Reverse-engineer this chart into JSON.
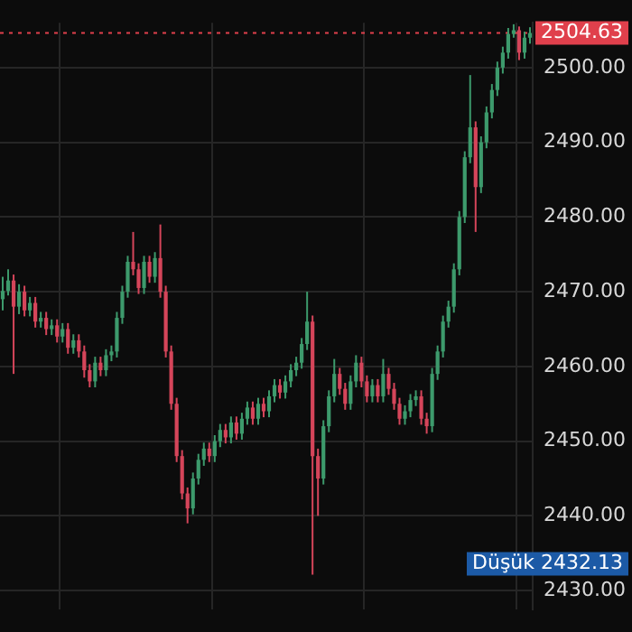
{
  "chart_data": {
    "type": "candlestick",
    "categories": [
      null,
      null,
      null,
      null,
      null,
      null,
      null,
      null,
      null,
      null,
      null,
      null,
      null,
      null,
      null,
      null,
      null,
      null,
      null,
      null,
      null,
      null,
      null,
      null,
      null,
      null,
      null,
      null,
      null,
      null,
      null,
      null,
      null,
      null,
      null,
      null,
      null,
      null,
      null,
      null,
      null,
      null,
      null,
      null,
      null,
      null,
      null,
      null,
      null,
      null,
      null,
      null,
      null,
      null,
      null,
      null,
      null,
      null,
      null,
      null,
      null,
      null,
      null,
      null,
      null,
      null,
      null,
      null,
      null,
      null,
      null,
      null,
      null,
      null,
      null,
      null,
      null,
      null,
      null,
      null,
      null,
      null,
      null,
      null,
      null,
      null,
      null,
      null,
      null,
      null,
      null,
      null,
      null,
      null,
      null,
      null,
      null,
      null
    ],
    "ohlc": [
      [
        2469,
        2472,
        2467.5,
        2470.1
      ],
      [
        2470.1,
        2473,
        2469.5,
        2471.5
      ],
      [
        2471.5,
        2472.3,
        2459,
        2468
      ],
      [
        2468,
        2471,
        2467,
        2470
      ],
      [
        2470,
        2470.8,
        2466.7,
        2467.5
      ],
      [
        2467.5,
        2469.3,
        2466.7,
        2468.5
      ],
      [
        2468.5,
        2469.3,
        2465.2,
        2466
      ],
      [
        2466,
        2467.3,
        2465.2,
        2466.5
      ],
      [
        2466.5,
        2467.3,
        2464.2,
        2465
      ],
      [
        2465,
        2466.3,
        2464.2,
        2465.5
      ],
      [
        2465.5,
        2466.3,
        2463.2,
        2464
      ],
      [
        2464,
        2465.8,
        2463.2,
        2465
      ],
      [
        2465,
        2465.8,
        2461.7,
        2462.5
      ],
      [
        2462.5,
        2464.3,
        2461.7,
        2463.5
      ],
      [
        2463.5,
        2464.3,
        2461.2,
        2462
      ],
      [
        2462,
        2462.8,
        2458.5,
        2459.5
      ],
      [
        2459.5,
        2460.3,
        2457.2,
        2458
      ],
      [
        2458,
        2461.3,
        2457.2,
        2460.5
      ],
      [
        2460.5,
        2461.3,
        2458.7,
        2459.5
      ],
      [
        2459.5,
        2462.3,
        2458.7,
        2461.5
      ],
      [
        2461.5,
        2462.8,
        2460.7,
        2462
      ],
      [
        2462,
        2467.3,
        2461.2,
        2466.5
      ],
      [
        2466.5,
        2470.8,
        2465.7,
        2470
      ],
      [
        2470,
        2474.8,
        2469.2,
        2474
      ],
      [
        2474,
        2478,
        2472.2,
        2473
      ],
      [
        2473,
        2473.8,
        2469.7,
        2470.5
      ],
      [
        2470.5,
        2474.8,
        2469.7,
        2474
      ],
      [
        2474,
        2474.8,
        2471.2,
        2472
      ],
      [
        2472,
        2475.3,
        2471.2,
        2474.5
      ],
      [
        2474.5,
        2479,
        2469.2,
        2470
      ],
      [
        2470,
        2470.8,
        2461.2,
        2462
      ],
      [
        2462,
        2462.8,
        2454.2,
        2455
      ],
      [
        2455,
        2455.8,
        2447.2,
        2448
      ],
      [
        2448,
        2448.8,
        2442.2,
        2443
      ],
      [
        2443,
        2443.8,
        2439,
        2441
      ],
      [
        2441,
        2445.8,
        2440.2,
        2445
      ],
      [
        2445,
        2448.3,
        2444.2,
        2447.5
      ],
      [
        2447.5,
        2449.8,
        2446.7,
        2449
      ],
      [
        2449,
        2449.8,
        2447.2,
        2448
      ],
      [
        2448,
        2450.8,
        2447.2,
        2450
      ],
      [
        2450,
        2452.3,
        2449.2,
        2451.5
      ],
      [
        2451.5,
        2452.3,
        2449.7,
        2450.5
      ],
      [
        2450.5,
        2453.3,
        2449.7,
        2452.5
      ],
      [
        2452.5,
        2453.3,
        2450.2,
        2451
      ],
      [
        2451,
        2453.8,
        2450.2,
        2453
      ],
      [
        2453,
        2455.3,
        2452.2,
        2454.5
      ],
      [
        2454.5,
        2455.3,
        2452.2,
        2453
      ],
      [
        2453,
        2455.8,
        2452.2,
        2455
      ],
      [
        2455,
        2455.8,
        2453.2,
        2454
      ],
      [
        2454,
        2456.8,
        2453.2,
        2456
      ],
      [
        2456,
        2458.3,
        2455.2,
        2457.5
      ],
      [
        2457.5,
        2458.3,
        2455.7,
        2456.5
      ],
      [
        2456.5,
        2458.8,
        2455.7,
        2458
      ],
      [
        2458,
        2460.3,
        2457.2,
        2459.5
      ],
      [
        2459.5,
        2461.3,
        2458.7,
        2460.5
      ],
      [
        2460.5,
        2463.8,
        2459.7,
        2463
      ],
      [
        2463,
        2470,
        2462.2,
        2466
      ],
      [
        2466,
        2466.8,
        2432.13,
        2448
      ],
      [
        2448,
        2449,
        2440,
        2445
      ],
      [
        2445,
        2452.8,
        2444.2,
        2452
      ],
      [
        2452,
        2456.8,
        2451.2,
        2456
      ],
      [
        2456,
        2461,
        2455.2,
        2459
      ],
      [
        2459,
        2459.8,
        2456.2,
        2457
      ],
      [
        2457,
        2457.8,
        2454.2,
        2455
      ],
      [
        2455,
        2458.8,
        2454.2,
        2458
      ],
      [
        2458,
        2461.5,
        2457.2,
        2460.5
      ],
      [
        2460.5,
        2461.3,
        2457.2,
        2458
      ],
      [
        2458,
        2458.8,
        2455.2,
        2456
      ],
      [
        2456,
        2458.3,
        2455.2,
        2457.5
      ],
      [
        2457.5,
        2458.3,
        2455.2,
        2456
      ],
      [
        2456,
        2461,
        2455.2,
        2459
      ],
      [
        2459,
        2459.8,
        2456.2,
        2457
      ],
      [
        2457,
        2457.8,
        2454.2,
        2455
      ],
      [
        2455,
        2455.8,
        2452.2,
        2453
      ],
      [
        2453,
        2454.8,
        2452.2,
        2454
      ],
      [
        2454,
        2456.3,
        2453.2,
        2455.5
      ],
      [
        2455.5,
        2456.8,
        2454.7,
        2456
      ],
      [
        2456,
        2456.8,
        2452.2,
        2453
      ],
      [
        2453,
        2453.8,
        2451,
        2452
      ],
      [
        2452,
        2459.8,
        2451.2,
        2459
      ],
      [
        2459,
        2462.8,
        2458.2,
        2462
      ],
      [
        2462,
        2466.8,
        2461.2,
        2466
      ],
      [
        2466,
        2468.8,
        2465.2,
        2468
      ],
      [
        2468,
        2473.8,
        2467.2,
        2473
      ],
      [
        2473,
        2480.8,
        2472.2,
        2480
      ],
      [
        2480,
        2488.8,
        2479.2,
        2488
      ],
      [
        2488,
        2499,
        2487.2,
        2492
      ],
      [
        2492,
        2492.8,
        2478,
        2484
      ],
      [
        2484,
        2490.8,
        2483.2,
        2490
      ],
      [
        2490,
        2494.8,
        2489.2,
        2494
      ],
      [
        2494,
        2497.8,
        2493.2,
        2497
      ],
      [
        2497,
        2500.8,
        2496.2,
        2500
      ],
      [
        2500,
        2502.8,
        2499.2,
        2502
      ],
      [
        2502,
        2505.3,
        2501.2,
        2504.5
      ],
      [
        2504.5,
        2505.8,
        2504,
        2505
      ],
      [
        2505,
        2505.5,
        2501,
        2502
      ],
      [
        2502,
        2504.8,
        2501.2,
        2504
      ],
      [
        2504,
        2505.4,
        2503.2,
        2504.63
      ]
    ],
    "ylim": [
      2427.5,
      2506
    ],
    "yticks": [
      {
        "value": 2430,
        "label": "2430.00"
      },
      {
        "value": 2440,
        "label": "2440.00"
      },
      {
        "value": 2450,
        "label": "2450.00"
      },
      {
        "value": 2460,
        "label": "2460.00"
      },
      {
        "value": 2470,
        "label": "2470.00"
      },
      {
        "value": 2480,
        "label": "2480.00"
      },
      {
        "value": 2490,
        "label": "2490.00"
      },
      {
        "value": 2500,
        "label": "2500.00"
      }
    ],
    "ref_lines": [
      {
        "axis": "y",
        "value": 2504.63,
        "label": "2504.63",
        "color": "#e0404c",
        "line_style": "dotted"
      }
    ],
    "annotations": [
      "Düşük 2432.13"
    ],
    "grid": true,
    "tick_labels": "y"
  }
}
